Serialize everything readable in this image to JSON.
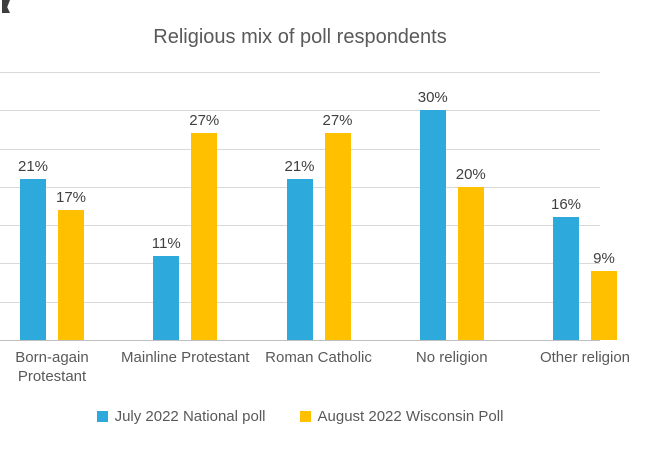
{
  "chart_data": {
    "type": "bar",
    "title": "Religious mix of poll respondents",
    "categories": [
      "Born-again Protestant",
      "Mainline Protestant",
      "Roman Catholic",
      "No religion",
      "Other religion"
    ],
    "series": [
      {
        "name": "July 2022 National poll",
        "color": "#2EA9DC",
        "values": [
          21,
          11,
          21,
          30,
          16
        ]
      },
      {
        "name": "August 2022 Wisconsin Poll",
        "color": "#FFC000",
        "values": [
          17,
          27,
          27,
          20,
          9
        ]
      }
    ],
    "value_suffix": "%",
    "ylim": [
      0,
      35
    ],
    "gridline_step": 5,
    "grid": true,
    "legend_position": "bottom",
    "colors": {
      "gridline": "#d9d9d9",
      "axis_line": "#bfbfbf",
      "title_text": "#595959",
      "label_text": "#404040"
    }
  }
}
